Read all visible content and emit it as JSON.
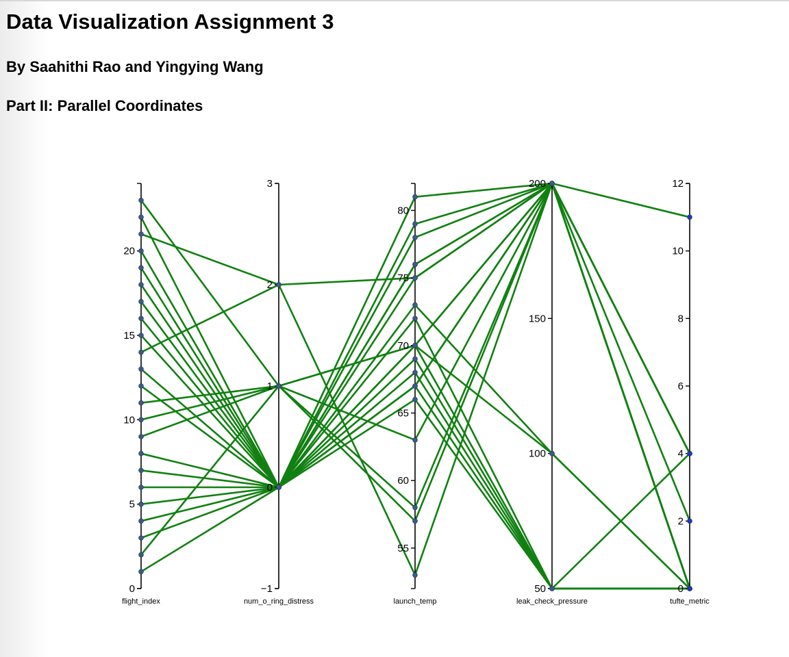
{
  "page": {
    "title": "Data Visualization Assignment 3",
    "authors": "By Saahithi Rao and Yingying Wang",
    "part": "Part II: Parallel Coordinates"
  },
  "colors": {
    "line": "#118011",
    "dot_fill": "#3d5a8a",
    "dot_stroke": "#2c3f66",
    "tufte_dot_fill": "#2233cc",
    "axis": "#000000"
  },
  "chart_data": {
    "type": "parallel_coordinates",
    "axes": [
      {
        "key": "flight_index",
        "label": "flight_index",
        "domain": [
          0,
          24
        ],
        "ticks": [
          0,
          5,
          10,
          15,
          20
        ]
      },
      {
        "key": "num_o_ring_distress",
        "label": "num_o_ring_distress",
        "domain": [
          -1,
          3
        ],
        "ticks": [
          -1,
          0,
          1,
          2,
          3
        ]
      },
      {
        "key": "launch_temp",
        "label": "launch_temp",
        "domain": [
          52,
          82
        ],
        "ticks": [
          55,
          60,
          65,
          70,
          75,
          80
        ]
      },
      {
        "key": "leak_check_pressure",
        "label": "leak_check_pressure",
        "domain": [
          50,
          200
        ],
        "ticks": [
          50,
          100,
          150,
          200
        ]
      },
      {
        "key": "tufte_metric",
        "label": "tufte_metric",
        "domain": [
          0,
          12
        ],
        "ticks": [
          0,
          2,
          4,
          6,
          8,
          10,
          12
        ]
      }
    ],
    "axis_tick_text": {
      "flight_index": [
        "0",
        "5",
        "10",
        "15",
        "20"
      ],
      "num_o_ring_distress": [
        "−1",
        "0",
        "1",
        "2",
        "3"
      ],
      "launch_temp": [
        "55",
        "60",
        "65",
        "70",
        "75",
        "80"
      ],
      "leak_check_pressure": [
        "50",
        "100",
        "150",
        "200"
      ],
      "tufte_metric": [
        "0",
        "2",
        "4",
        "6",
        "8",
        "10",
        "12"
      ]
    },
    "records": [
      [
        1,
        0,
        66,
        50,
        0
      ],
      [
        2,
        1,
        70,
        50,
        4
      ],
      [
        3,
        0,
        69,
        50,
        0
      ],
      [
        4,
        0,
        68,
        50,
        0
      ],
      [
        5,
        0,
        67,
        50,
        0
      ],
      [
        6,
        0,
        72,
        50,
        0
      ],
      [
        7,
        0,
        73,
        100,
        0
      ],
      [
        8,
        0,
        70,
        100,
        0
      ],
      [
        9,
        1,
        57,
        200,
        4
      ],
      [
        10,
        1,
        63,
        200,
        2
      ],
      [
        11,
        1,
        70,
        200,
        4
      ],
      [
        12,
        0,
        78,
        200,
        0
      ],
      [
        13,
        0,
        67,
        200,
        0
      ],
      [
        14,
        2,
        53,
        200,
        11
      ],
      [
        15,
        0,
        67,
        200,
        0
      ],
      [
        16,
        0,
        75,
        200,
        0
      ],
      [
        17,
        0,
        70,
        200,
        0
      ],
      [
        18,
        0,
        81,
        200,
        0
      ],
      [
        19,
        0,
        76,
        200,
        0
      ],
      [
        20,
        0,
        79,
        200,
        0
      ],
      [
        21,
        2,
        75,
        200,
        4
      ],
      [
        22,
        0,
        76,
        200,
        0
      ],
      [
        23,
        1,
        58,
        200,
        4
      ]
    ]
  }
}
